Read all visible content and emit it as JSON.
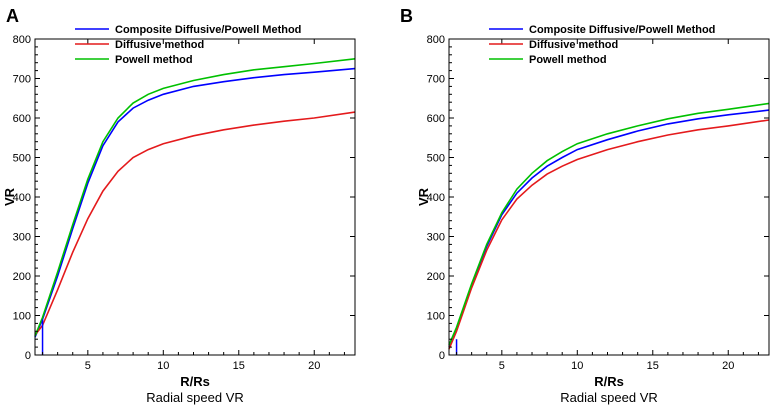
{
  "chart_data": [
    {
      "type": "line",
      "panel_label": "A",
      "title": "",
      "xlabel": "R/Rs",
      "ylabel": "VR",
      "caption": "Radial speed VR",
      "xlim": [
        1.5,
        22.7
      ],
      "ylim": [
        0,
        800
      ],
      "xticks": [
        5,
        10,
        15,
        20
      ],
      "yticks": [
        0,
        100,
        200,
        300,
        400,
        500,
        600,
        700,
        800
      ],
      "legend_position": "top",
      "marker": {
        "x": 2.0,
        "y_range": [
          0,
          90
        ],
        "color": "#0000ff"
      },
      "series": [
        {
          "name": "Composite Diffusive/Powell Method",
          "color": "#0000ff",
          "x": [
            1.5,
            2,
            3,
            4,
            5,
            6,
            7,
            8,
            9,
            10,
            12,
            14,
            16,
            18,
            20,
            22.7
          ],
          "y": [
            45,
            90,
            200,
            320,
            435,
            530,
            590,
            625,
            645,
            660,
            680,
            692,
            702,
            710,
            716,
            725
          ]
        },
        {
          "name": "Diffusive method",
          "color": "#e41a1c",
          "x": [
            1.5,
            2,
            3,
            4,
            5,
            6,
            7,
            8,
            9,
            10,
            12,
            14,
            16,
            18,
            20,
            22.7
          ],
          "y": [
            50,
            75,
            165,
            260,
            345,
            415,
            465,
            500,
            520,
            535,
            555,
            570,
            582,
            592,
            600,
            615
          ]
        },
        {
          "name": "Powell method",
          "color": "#00c000",
          "x": [
            1.5,
            2,
            3,
            4,
            5,
            6,
            7,
            8,
            9,
            10,
            12,
            14,
            16,
            18,
            20,
            22.7
          ],
          "y": [
            48,
            95,
            210,
            330,
            445,
            540,
            600,
            638,
            660,
            675,
            695,
            710,
            722,
            730,
            738,
            750
          ]
        }
      ]
    },
    {
      "type": "line",
      "panel_label": "B",
      "title": "",
      "xlabel": "R/Rs",
      "ylabel": "VR",
      "caption": "Radial speed VR",
      "xlim": [
        1.5,
        22.7
      ],
      "ylim": [
        0,
        800
      ],
      "xticks": [
        5,
        10,
        15,
        20
      ],
      "yticks": [
        0,
        100,
        200,
        300,
        400,
        500,
        600,
        700,
        800
      ],
      "legend_position": "top",
      "marker": {
        "x": 2.0,
        "y_range": [
          0,
          40
        ],
        "color": "#0000ff"
      },
      "series": [
        {
          "name": "Composite Diffusive/Powell Method",
          "color": "#0000ff",
          "x": [
            1.5,
            2,
            3,
            4,
            5,
            6,
            7,
            8,
            9,
            10,
            12,
            14,
            16,
            18,
            20,
            22.7
          ],
          "y": [
            20,
            65,
            175,
            275,
            355,
            410,
            448,
            478,
            500,
            520,
            545,
            567,
            585,
            598,
            608,
            620
          ]
        },
        {
          "name": "Diffusive method",
          "color": "#e41a1c",
          "x": [
            1.5,
            2,
            3,
            4,
            5,
            6,
            7,
            8,
            9,
            10,
            12,
            14,
            16,
            18,
            20,
            22.7
          ],
          "y": [
            15,
            60,
            170,
            265,
            342,
            395,
            430,
            458,
            478,
            495,
            520,
            540,
            557,
            570,
            580,
            595
          ]
        },
        {
          "name": "Powell method",
          "color": "#00c000",
          "x": [
            1.5,
            2,
            3,
            4,
            5,
            6,
            7,
            8,
            9,
            10,
            12,
            14,
            16,
            18,
            20,
            22.7
          ],
          "y": [
            25,
            70,
            180,
            280,
            360,
            420,
            460,
            492,
            515,
            535,
            560,
            580,
            598,
            612,
            622,
            637
          ]
        }
      ]
    }
  ]
}
